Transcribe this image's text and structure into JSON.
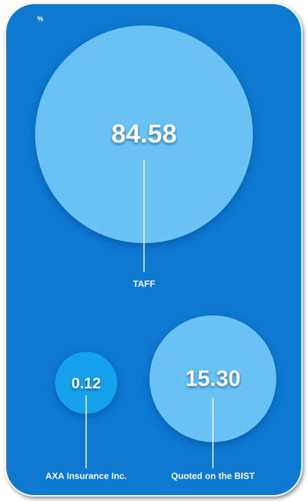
{
  "chart_data": {
    "type": "bubble",
    "unit_label": "%",
    "categories": [
      "TAFF",
      "Quoted on the BIST",
      "AXA Insurance Inc."
    ],
    "values": [
      84.58,
      15.3,
      0.12
    ],
    "value_labels": [
      "84.58",
      "15.30",
      "0.12"
    ],
    "colors": [
      "#6ac3f5",
      "#6ac3f5",
      "#13a2ea"
    ],
    "background": "#0a79d1"
  }
}
